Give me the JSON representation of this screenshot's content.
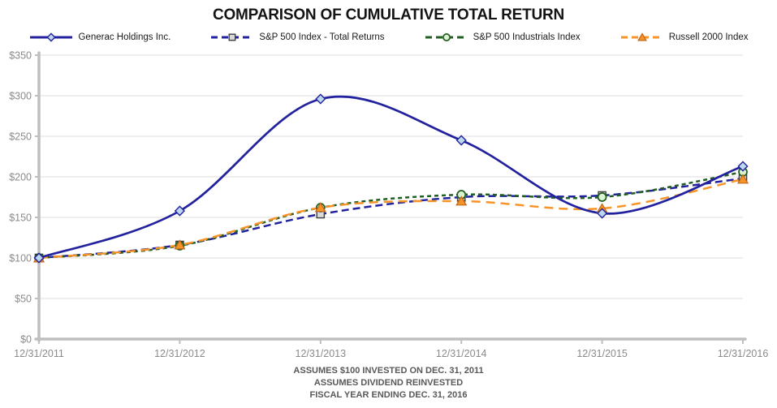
{
  "title": "COMPARISON OF CUMULATIVE TOTAL RETURN",
  "footer": {
    "line1": "ASSUMES $100 INVESTED ON DEC. 31, 2011",
    "line2": "ASSUMES DIVIDEND REINVESTED",
    "line3": "FISCAL YEAR ENDING DEC. 31, 2016"
  },
  "colors": {
    "navy": "#22229E",
    "green": "#215E21",
    "orange": "#F79428",
    "axis": "#BFBFBF",
    "grid": "#E3E3E3",
    "tick_text": "#8A8A8A",
    "title_text": "#141414",
    "footer_text": "#595959",
    "diamond_fill": "#BDD7EE",
    "square_fill": "#D9D9D9",
    "square_stroke": "#3F3F3F",
    "circle_fill": "#DCF3D2",
    "triangle_fill": "#F79428",
    "triangle_stroke": "#C2661B"
  },
  "chart_data": {
    "type": "line",
    "title": "COMPARISON OF CUMULATIVE TOTAL RETURN",
    "x": [
      "12/31/2011",
      "12/31/2012",
      "12/31/2013",
      "12/31/2014",
      "12/31/2015",
      "12/31/2016"
    ],
    "series": [
      {
        "name": "Generac Holdings Inc.",
        "values": [
          100,
          158,
          296,
          245,
          155,
          213
        ],
        "color": "#22229E",
        "dash": "solid",
        "marker": "diamond"
      },
      {
        "name": "S&P 500 Index - Total Returns",
        "values": [
          100,
          116,
          154,
          175,
          177,
          198
        ],
        "color": "#22229E",
        "dash": "9 5",
        "marker": "square"
      },
      {
        "name": "S&P 500 Industrials Index",
        "values": [
          100,
          115,
          162,
          178,
          175,
          206
        ],
        "color": "#215E21",
        "dash": "5 4",
        "marker": "circle"
      },
      {
        "name": "Russell 2000 Index",
        "values": [
          100,
          116,
          162,
          170,
          161,
          197
        ],
        "color": "#F79428",
        "dash": "11 7",
        "marker": "triangle"
      }
    ],
    "ylim": [
      0,
      350
    ],
    "ytick_step": 50,
    "ytick_labels": [
      "$0",
      "$50",
      "$100",
      "$150",
      "$200",
      "$250",
      "$300",
      "$350"
    ],
    "xlabel": "",
    "ylabel": "",
    "grid": true,
    "legend_position": "top",
    "line_smoothing": "catmull-rom"
  }
}
